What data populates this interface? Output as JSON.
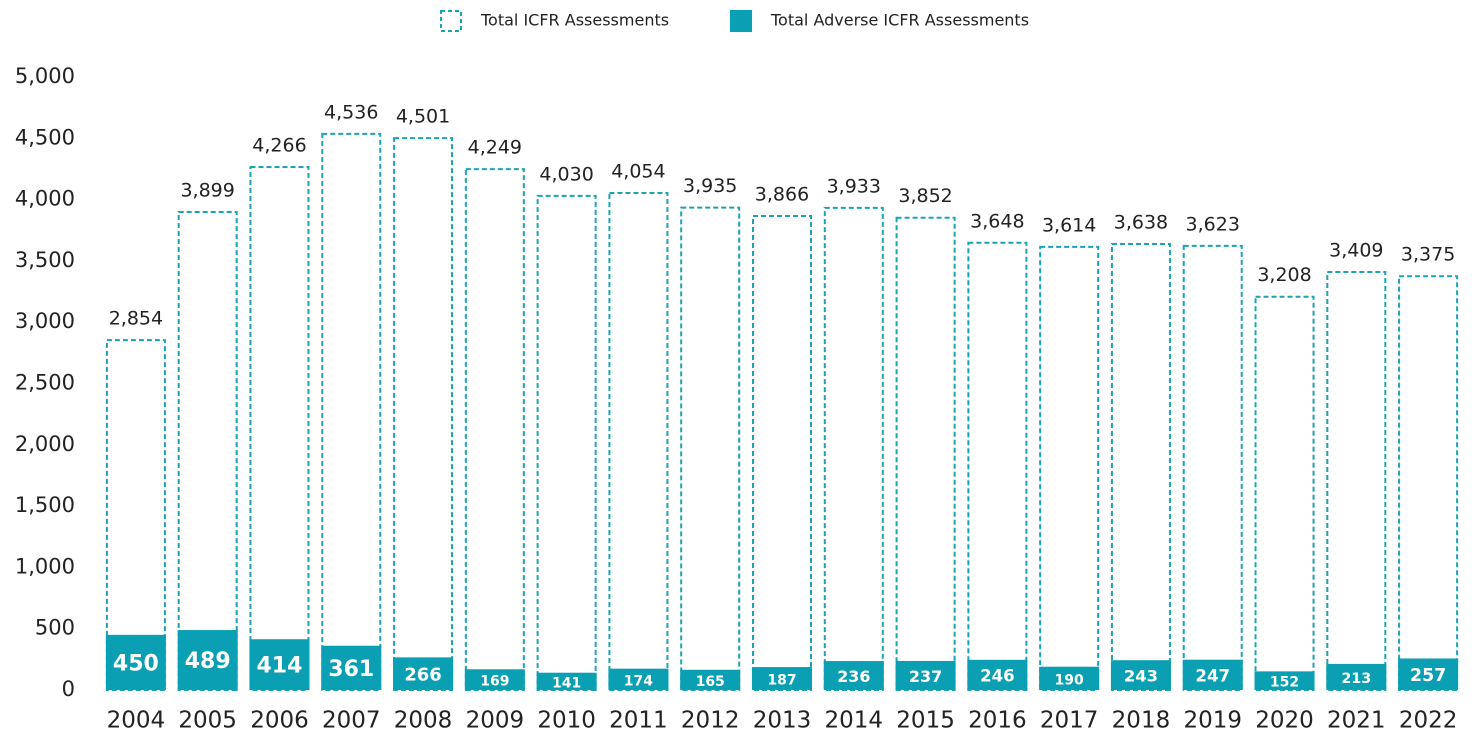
{
  "chart_data": {
    "type": "overlapped_bar",
    "categories": [
      "2004",
      "2005",
      "2006",
      "2007",
      "2008",
      "2009",
      "2010",
      "2011",
      "2012",
      "2013",
      "2014",
      "2015",
      "2016",
      "2017",
      "2018",
      "2019",
      "2020",
      "2021",
      "2022"
    ],
    "series": [
      {
        "name": "Total ICFR Assessments",
        "color": "#1aa3b5",
        "style": "dashed",
        "values": [
          2854,
          3899,
          4266,
          4536,
          4501,
          4249,
          4030,
          4054,
          3935,
          3866,
          3933,
          3852,
          3648,
          3614,
          3638,
          3623,
          3208,
          3409,
          3375
        ],
        "value_labels": [
          "2,854",
          "3,899",
          "4,266",
          "4,536",
          "4,501",
          "4,249",
          "4,030",
          "4,054",
          "3,935",
          "3,866",
          "3,933",
          "3,852",
          "3,648",
          "3,614",
          "3,638",
          "3,623",
          "3,208",
          "3,409",
          "3,375"
        ]
      },
      {
        "name": "Total Adverse ICFR Assessments",
        "color": "#0a9fb2",
        "style": "filled",
        "values": [
          450,
          489,
          414,
          361,
          266,
          169,
          141,
          174,
          165,
          187,
          236,
          237,
          246,
          190,
          243,
          247,
          152,
          213,
          257
        ]
      }
    ],
    "ylim": [
      0,
      5000
    ],
    "yticks": [
      0,
      500,
      {
        "value": 1000,
        "label": "1,000"
      },
      {
        "value": 1500,
        "label": "1,500"
      },
      {
        "value": 2000,
        "label": "2,000"
      },
      {
        "value": 2500,
        "label": "2,500"
      },
      {
        "value": 3000,
        "label": "3,000"
      },
      {
        "value": 3500,
        "label": "3,500"
      },
      {
        "value": 4000,
        "label": "4,000"
      },
      {
        "value": 4500,
        "label": "4,500"
      },
      {
        "value": 5000,
        "label": "5,000"
      }
    ],
    "legend": "top"
  }
}
